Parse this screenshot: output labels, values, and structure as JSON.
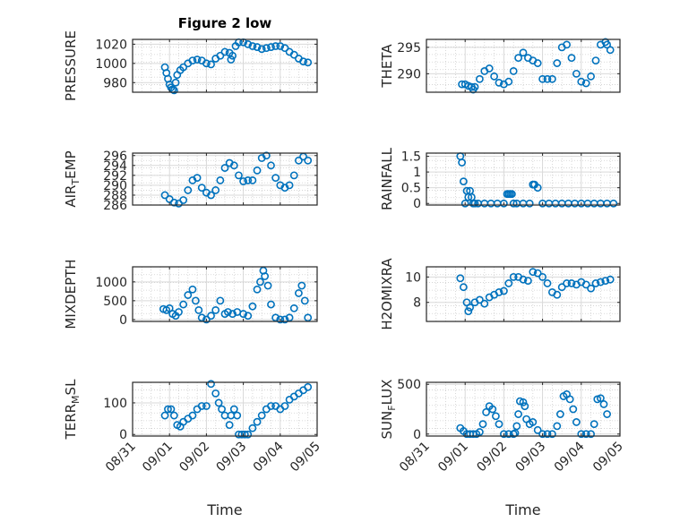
{
  "chart_data": [
    {
      "type": "scatter",
      "title": "Figure 2 low",
      "ylabel": "PRESSURE",
      "xlabel": "",
      "xlim": [
        "08/31",
        "09/05"
      ],
      "ylim": [
        970,
        1025
      ],
      "yticks": [
        980,
        1000,
        1020
      ],
      "ytick_labels": [
        "980",
        "1000",
        "1020"
      ],
      "xtick_labels": [],
      "grid": true,
      "color": "#0072BD",
      "x": [
        "08/31 21:00",
        "08/31 22:00",
        "08/31 23:00",
        "09/01 00:00",
        "09/01 01:00",
        "09/01 02:00",
        "09/01 03:00",
        "09/01 04:00",
        "09/01 05:00",
        "09/01 07:00",
        "09/01 09:00",
        "09/01 12:00",
        "09/01 15:00",
        "09/01 18:00",
        "09/01 21:00",
        "09/02 00:00",
        "09/02 03:00",
        "09/02 06:00",
        "09/02 09:00",
        "09/02 12:00",
        "09/02 15:00",
        "09/02 16:00",
        "09/02 17:00",
        "09/02 19:00",
        "09/02 21:00",
        "09/03 00:00",
        "09/03 03:00",
        "09/03 06:00",
        "09/03 09:00",
        "09/03 12:00",
        "09/03 15:00",
        "09/03 18:00",
        "09/03 21:00",
        "09/04 00:00",
        "09/04 03:00",
        "09/04 06:00",
        "09/04 09:00",
        "09/04 12:00",
        "09/04 15:00",
        "09/04 18:00"
      ],
      "y": [
        996,
        990,
        984,
        978,
        975,
        973,
        972,
        980,
        988,
        993,
        996,
        1000,
        1003,
        1004,
        1003,
        1000,
        999,
        1005,
        1008,
        1012,
        1011,
        1004,
        1008,
        1018,
        1022,
        1022,
        1020,
        1018,
        1017,
        1015,
        1016,
        1017,
        1018,
        1018,
        1016,
        1012,
        1009,
        1005,
        1002,
        1001
      ]
    },
    {
      "type": "scatter",
      "title": "",
      "ylabel": "THETA",
      "xlabel": "",
      "xlim": [
        "08/31",
        "09/05"
      ],
      "ylim": [
        286.5,
        296.5
      ],
      "yticks": [
        290,
        295
      ],
      "ytick_labels": [
        "290",
        "295"
      ],
      "xtick_labels": [],
      "grid": true,
      "color": "#0072BD",
      "x": [
        "08/31 22:00",
        "09/01 00:00",
        "09/01 02:00",
        "09/01 04:00",
        "09/01 05:00",
        "09/01 06:00",
        "09/01 09:00",
        "09/01 12:00",
        "09/01 15:00",
        "09/01 18:00",
        "09/01 21:00",
        "09/02 00:00",
        "09/02 03:00",
        "09/02 06:00",
        "09/02 09:00",
        "09/02 12:00",
        "09/02 15:00",
        "09/02 18:00",
        "09/02 21:00",
        "09/03 00:00",
        "09/03 03:00",
        "09/03 06:00",
        "09/03 09:00",
        "09/03 12:00",
        "09/03 15:00",
        "09/03 18:00",
        "09/03 21:00",
        "09/04 00:00",
        "09/04 03:00",
        "09/04 06:00",
        "09/04 09:00",
        "09/04 12:00",
        "09/04 15:00",
        "09/04 16:00",
        "09/04 18:00"
      ],
      "y": [
        288,
        288,
        287.7,
        287.5,
        287,
        287.5,
        289,
        290.5,
        291,
        289.5,
        288.3,
        288,
        288.5,
        290.5,
        293,
        294,
        293,
        292.5,
        292,
        289,
        289,
        289,
        292,
        295,
        295.5,
        293,
        290,
        288.5,
        288.2,
        289.5,
        292.5,
        295.5,
        296,
        295.5,
        294.5
      ]
    },
    {
      "type": "scatter",
      "title": "",
      "ylabel": "AIR_TEMP",
      "xlabel": "",
      "xlim": [
        "08/31",
        "09/05"
      ],
      "ylim": [
        286,
        296.5
      ],
      "yticks": [
        286,
        288,
        290,
        292,
        294,
        296
      ],
      "ytick_labels": [
        "286",
        "288",
        "290",
        "292",
        "294",
        "296"
      ],
      "xtick_labels": [],
      "grid": true,
      "color": "#0072BD",
      "x": [
        "08/31 21:00",
        "09/01 00:00",
        "09/01 03:00",
        "09/01 06:00",
        "09/01 09:00",
        "09/01 12:00",
        "09/01 15:00",
        "09/01 18:00",
        "09/01 21:00",
        "09/02 00:00",
        "09/02 03:00",
        "09/02 06:00",
        "09/02 09:00",
        "09/02 12:00",
        "09/02 15:00",
        "09/02 18:00",
        "09/02 21:00",
        "09/03 00:00",
        "09/03 03:00",
        "09/03 06:00",
        "09/03 09:00",
        "09/03 12:00",
        "09/03 15:00",
        "09/03 18:00",
        "09/03 21:00",
        "09/04 00:00",
        "09/04 03:00",
        "09/04 06:00",
        "09/04 09:00",
        "09/04 12:00",
        "09/04 15:00",
        "09/04 18:00"
      ],
      "y": [
        288,
        287.2,
        286.5,
        286.3,
        287,
        289,
        291,
        291.5,
        289.5,
        288.5,
        288,
        289,
        291,
        293.5,
        294.5,
        294,
        292,
        290.8,
        291,
        291,
        293,
        295.5,
        296,
        294,
        291.5,
        290,
        289.5,
        290,
        292,
        295,
        295.8,
        295
      ]
    },
    {
      "type": "scatter",
      "title": "",
      "ylabel": "RAINFALL",
      "xlabel": "",
      "xlim": [
        "08/31",
        "09/05"
      ],
      "ylim": [
        -0.05,
        1.6
      ],
      "yticks": [
        0,
        0.5,
        1,
        1.5
      ],
      "ytick_labels": [
        "0",
        "0.5",
        "1",
        "1.5"
      ],
      "xtick_labels": [],
      "grid": true,
      "color": "#0072BD",
      "x": [
        "08/31 21:00",
        "08/31 22:00",
        "08/31 23:00",
        "09/01 00:00",
        "09/01 01:00",
        "09/01 02:00",
        "09/01 03:00",
        "09/01 04:00",
        "09/01 05:00",
        "09/01 06:00",
        "09/01 08:00",
        "09/01 12:00",
        "09/01 16:00",
        "09/01 20:00",
        "09/02 00:00",
        "09/02 02:00",
        "09/02 03:00",
        "09/02 04:00",
        "09/02 05:00",
        "09/02 06:00",
        "09/02 08:00",
        "09/02 12:00",
        "09/02 16:00",
        "09/02 18:00",
        "09/02 19:00",
        "09/02 21:00",
        "09/03 00:00",
        "09/03 04:00",
        "09/03 08:00",
        "09/03 12:00",
        "09/03 16:00",
        "09/03 20:00",
        "09/04 00:00",
        "09/04 04:00",
        "09/04 08:00",
        "09/04 12:00",
        "09/04 16:00",
        "09/04 20:00"
      ],
      "y": [
        1.5,
        1.3,
        0.7,
        0,
        0.4,
        0.2,
        0.4,
        0.2,
        0,
        0,
        0,
        0,
        0,
        0,
        0,
        0.3,
        0.3,
        0.3,
        0.3,
        0,
        0,
        0,
        0,
        0.6,
        0.6,
        0.5,
        0,
        0,
        0,
        0,
        0,
        0,
        0,
        0,
        0,
        0,
        0,
        0
      ]
    },
    {
      "type": "scatter",
      "title": "",
      "ylabel": "MIXDEPTH",
      "xlabel": "",
      "xlim": [
        "08/31",
        "09/05"
      ],
      "ylim": [
        -50,
        1400
      ],
      "yticks": [
        0,
        500,
        1000
      ],
      "ytick_labels": [
        "0",
        "500",
        "1000"
      ],
      "xtick_labels": [],
      "grid": true,
      "color": "#0072BD",
      "x": [
        "08/31 20:00",
        "08/31 22:00",
        "09/01 00:00",
        "09/01 02:00",
        "09/01 04:00",
        "09/01 06:00",
        "09/01 09:00",
        "09/01 12:00",
        "09/01 15:00",
        "09/01 17:00",
        "09/01 19:00",
        "09/01 21:00",
        "09/02 00:00",
        "09/02 03:00",
        "09/02 06:00",
        "09/02 09:00",
        "09/02 12:00",
        "09/02 14:00",
        "09/02 17:00",
        "09/02 20:00",
        "09/03 00:00",
        "09/03 03:00",
        "09/03 06:00",
        "09/03 09:00",
        "09/03 11:00",
        "09/03 13:00",
        "09/03 14:00",
        "09/03 16:00",
        "09/03 18:00",
        "09/03 21:00",
        "09/04 00:00",
        "09/04 03:00",
        "09/04 06:00",
        "09/04 09:00",
        "09/04 12:00",
        "09/04 14:00",
        "09/04 16:00",
        "09/04 18:00"
      ],
      "y": [
        280,
        250,
        300,
        150,
        100,
        200,
        400,
        650,
        800,
        500,
        250,
        50,
        0,
        100,
        250,
        500,
        150,
        200,
        150,
        200,
        150,
        100,
        350,
        800,
        1000,
        1300,
        1150,
        900,
        400,
        50,
        0,
        0,
        50,
        300,
        700,
        900,
        500,
        50
      ]
    },
    {
      "type": "scatter",
      "title": "",
      "ylabel": "H2OMIXRA",
      "xlabel": "",
      "xlim": [
        "08/31",
        "09/05"
      ],
      "ylim": [
        6.5,
        10.8
      ],
      "yticks": [
        8,
        10
      ],
      "ytick_labels": [
        "8",
        "10"
      ],
      "xtick_labels": [],
      "grid": true,
      "color": "#0072BD",
      "x": [
        "08/31 21:00",
        "08/31 23:00",
        "09/01 01:00",
        "09/01 02:00",
        "09/01 03:00",
        "09/01 06:00",
        "09/01 09:00",
        "09/01 12:00",
        "09/01 15:00",
        "09/01 18:00",
        "09/01 21:00",
        "09/02 00:00",
        "09/02 03:00",
        "09/02 06:00",
        "09/02 09:00",
        "09/02 12:00",
        "09/02 15:00",
        "09/02 18:00",
        "09/02 21:00",
        "09/03 00:00",
        "09/03 03:00",
        "09/03 06:00",
        "09/03 09:00",
        "09/03 12:00",
        "09/03 15:00",
        "09/03 18:00",
        "09/03 21:00",
        "09/04 00:00",
        "09/04 03:00",
        "09/04 06:00",
        "09/04 09:00",
        "09/04 12:00",
        "09/04 15:00",
        "09/04 18:00"
      ],
      "y": [
        9.9,
        9.2,
        8,
        7.3,
        7.6,
        8,
        8.2,
        7.9,
        8.4,
        8.6,
        8.8,
        8.9,
        9.5,
        10,
        10,
        9.8,
        9.7,
        10.4,
        10.3,
        10,
        9.5,
        8.8,
        8.6,
        9.2,
        9.5,
        9.5,
        9.4,
        9.6,
        9.4,
        9.1,
        9.5,
        9.6,
        9.7,
        9.8
      ]
    },
    {
      "type": "scatter",
      "title": "",
      "ylabel": "TERR_MSL",
      "xlabel": "Time",
      "xlim": [
        "08/31",
        "09/05"
      ],
      "ylim": [
        -5,
        165
      ],
      "yticks": [
        0,
        100
      ],
      "ytick_labels": [
        "0",
        "100"
      ],
      "xtick_labels": [
        "08/31",
        "09/01",
        "09/02",
        "09/03",
        "09/04",
        "09/05"
      ],
      "grid": true,
      "color": "#0072BD",
      "x": [
        "08/31 21:00",
        "08/31 23:00",
        "09/01 01:00",
        "09/01 03:00",
        "09/01 05:00",
        "09/01 07:00",
        "09/01 09:00",
        "09/01 12:00",
        "09/01 15:00",
        "09/01 18:00",
        "09/01 21:00",
        "09/02 00:00",
        "09/02 03:00",
        "09/02 06:00",
        "09/02 08:00",
        "09/02 10:00",
        "09/02 12:00",
        "09/02 15:00",
        "09/02 16:00",
        "09/02 18:00",
        "09/02 20:00",
        "09/02 21:00",
        "09/02 23:00",
        "09/03 01:00",
        "09/03 03:00",
        "09/03 06:00",
        "09/03 09:00",
        "09/03 12:00",
        "09/03 15:00",
        "09/03 18:00",
        "09/03 21:00",
        "09/04 00:00",
        "09/04 03:00",
        "09/04 06:00",
        "09/04 09:00",
        "09/04 12:00",
        "09/04 15:00",
        "09/04 18:00"
      ],
      "y": [
        60,
        80,
        80,
        60,
        30,
        25,
        40,
        50,
        60,
        80,
        90,
        90,
        160,
        130,
        100,
        80,
        60,
        30,
        60,
        80,
        60,
        0,
        0,
        0,
        0,
        20,
        40,
        60,
        80,
        90,
        90,
        80,
        90,
        110,
        120,
        130,
        140,
        150
      ]
    },
    {
      "type": "scatter",
      "title": "",
      "ylabel": "SUN_FLUX",
      "xlabel": "Time",
      "xlim": [
        "08/31",
        "09/05"
      ],
      "ylim": [
        -20,
        520
      ],
      "yticks": [
        0,
        500
      ],
      "ytick_labels": [
        "0",
        "500"
      ],
      "xtick_labels": [
        "08/31",
        "09/01",
        "09/02",
        "09/03",
        "09/04",
        "09/05"
      ],
      "grid": true,
      "color": "#0072BD",
      "x": [
        "08/31 21:00",
        "08/31 23:00",
        "09/01 01:00",
        "09/01 03:00",
        "09/01 05:00",
        "09/01 07:00",
        "09/01 09:00",
        "09/01 11:00",
        "09/01 13:00",
        "09/01 15:00",
        "09/01 17:00",
        "09/01 19:00",
        "09/01 21:00",
        "09/02 00:00",
        "09/02 03:00",
        "09/02 06:00",
        "09/02 07:00",
        "09/02 08:00",
        "09/02 09:00",
        "09/02 10:00",
        "09/02 12:00",
        "09/02 13:00",
        "09/02 14:00",
        "09/02 16:00",
        "09/02 18:00",
        "09/02 21:00",
        "09/03 00:00",
        "09/03 03:00",
        "09/03 06:00",
        "09/03 09:00",
        "09/03 11:00",
        "09/03 13:00",
        "09/03 15:00",
        "09/03 17:00",
        "09/03 19:00",
        "09/03 21:00",
        "09/04 00:00",
        "09/04 03:00",
        "09/04 06:00",
        "09/04 08:00",
        "09/04 10:00",
        "09/04 12:00",
        "09/04 14:00",
        "09/04 16:00"
      ],
      "y": [
        60,
        30,
        0,
        0,
        0,
        0,
        20,
        100,
        220,
        280,
        250,
        180,
        100,
        0,
        0,
        0,
        10,
        80,
        200,
        330,
        320,
        280,
        150,
        100,
        120,
        40,
        0,
        0,
        0,
        80,
        200,
        380,
        400,
        350,
        250,
        120,
        0,
        0,
        0,
        100,
        350,
        360,
        300,
        200
      ]
    }
  ]
}
